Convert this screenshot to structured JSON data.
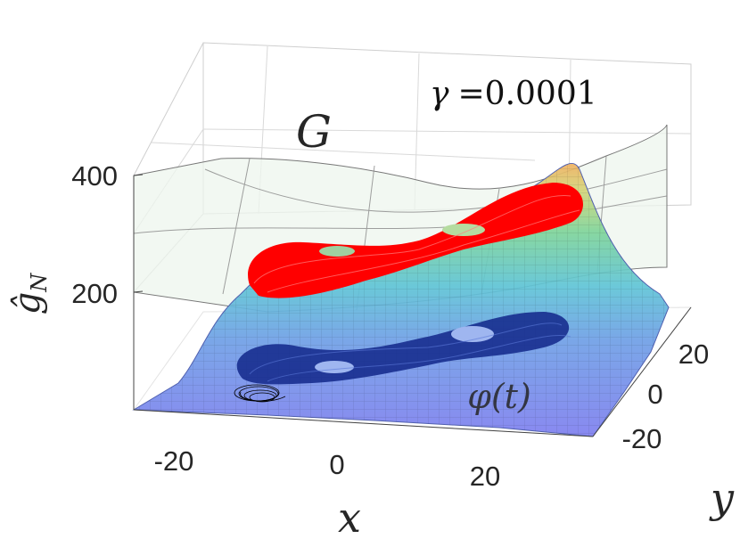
{
  "chart_data": {
    "type": "surface3d",
    "title": "",
    "xlabel": "x",
    "ylabel": "y",
    "zlabel": "ĝ_N",
    "zlabel_main": "ĝ",
    "zlabel_sub": "N",
    "x_ticks": [
      "-20",
      "0",
      "20"
    ],
    "y_ticks": [
      "-20",
      "0",
      "20"
    ],
    "z_ticks": [
      "200",
      "400"
    ],
    "xlim": [
      -30,
      30
    ],
    "ylim": [
      -30,
      30
    ],
    "zlim": [
      0,
      400
    ],
    "grid": true,
    "annotations": {
      "surface_label": "G",
      "trajectory_label": "φ(t)",
      "gamma_symbol": "γ",
      "gamma_text": "=0.0001"
    },
    "series": [
      {
        "color": "#ff0000"
      },
      {
        "color": "#142a8c"
      },
      {
        "color": "#000000"
      }
    ]
  }
}
